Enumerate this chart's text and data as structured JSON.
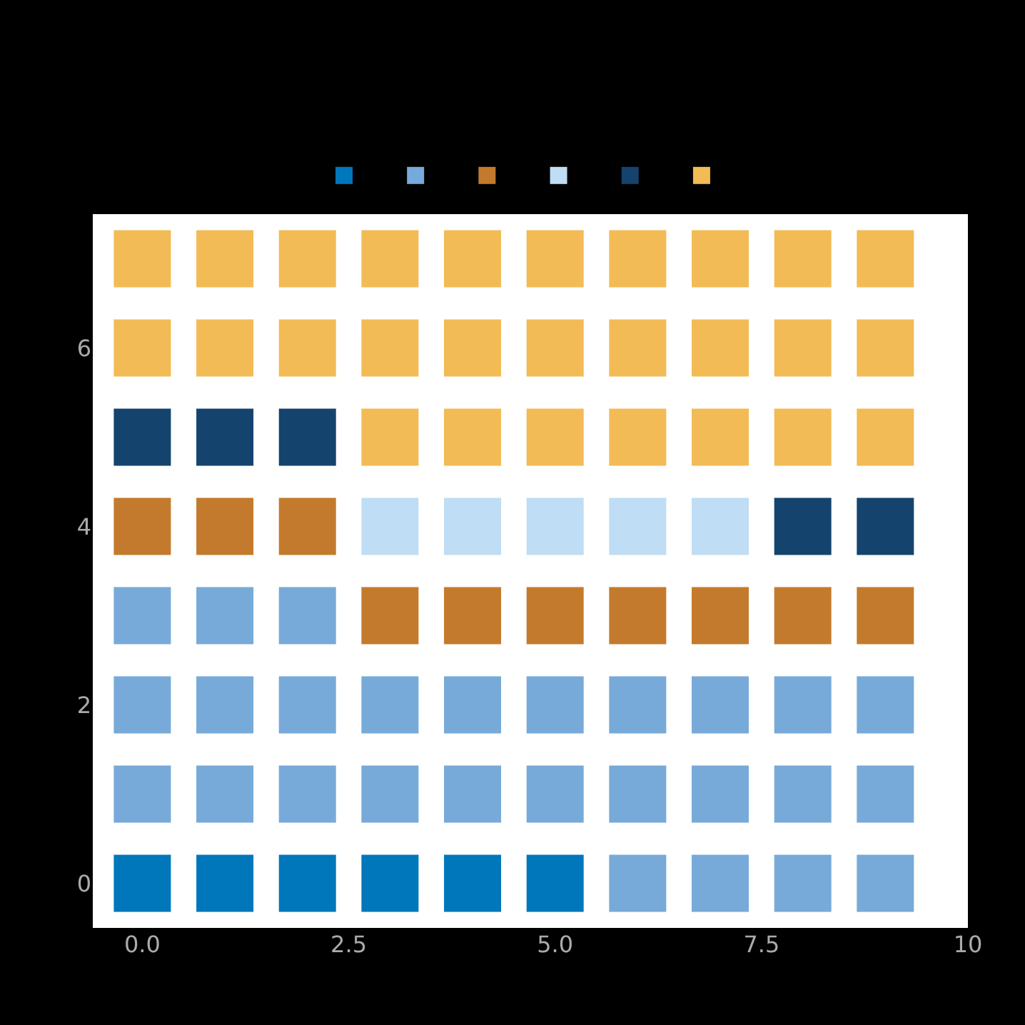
{
  "chart_data": {
    "type": "scatter",
    "marker": "square",
    "xlim": [
      -0.6,
      10
    ],
    "xticks": [
      {
        "value": 0,
        "label": "0.0"
      },
      {
        "value": 2.5,
        "label": "2.5"
      },
      {
        "value": 5,
        "label": "5.0"
      },
      {
        "value": 7.5,
        "label": "7.5"
      },
      10
    ],
    "ylim": [
      -0.5,
      7.5
    ],
    "yticks": [
      0,
      2,
      4,
      6
    ],
    "series": [
      {
        "color": "#0077bb",
        "x": [
          0,
          1,
          2,
          3,
          4,
          5
        ],
        "values": [
          0,
          0,
          0,
          0,
          0,
          0
        ]
      },
      {
        "color": "#77aad8",
        "x": [
          6,
          7,
          8,
          9,
          0,
          1,
          2,
          3,
          4,
          5,
          6,
          7,
          8,
          9,
          0,
          1,
          2,
          3,
          4,
          5,
          6,
          7,
          8,
          9,
          0,
          1,
          2
        ],
        "values": [
          0,
          0,
          0,
          0,
          1,
          1,
          1,
          1,
          1,
          1,
          1,
          1,
          1,
          1,
          2,
          2,
          2,
          2,
          2,
          2,
          2,
          2,
          2,
          2,
          3,
          3,
          3
        ]
      },
      {
        "color": "#c47a2c",
        "x": [
          3,
          4,
          5,
          6,
          7,
          8,
          9,
          0,
          1,
          2
        ],
        "values": [
          3,
          3,
          3,
          3,
          3,
          3,
          3,
          4,
          4,
          4
        ]
      },
      {
        "color": "#bfddf4",
        "x": [
          3,
          4,
          5,
          6,
          7
        ],
        "values": [
          4,
          4,
          4,
          4,
          4
        ]
      },
      {
        "color": "#14446e",
        "x": [
          8,
          9,
          0,
          1,
          2
        ],
        "values": [
          4,
          4,
          5,
          5,
          5
        ]
      },
      {
        "color": "#f2bb55",
        "x": [
          3,
          4,
          5,
          6,
          7,
          8,
          9,
          0,
          1,
          2,
          3,
          4,
          5,
          6,
          7,
          8,
          9,
          0,
          1,
          2,
          3,
          4,
          5,
          6,
          7,
          8,
          9
        ],
        "values": [
          5,
          5,
          5,
          5,
          5,
          5,
          5,
          6,
          6,
          6,
          6,
          6,
          6,
          6,
          6,
          6,
          6,
          7,
          7,
          7,
          7,
          7,
          7,
          7,
          7,
          7,
          7
        ]
      }
    ]
  }
}
